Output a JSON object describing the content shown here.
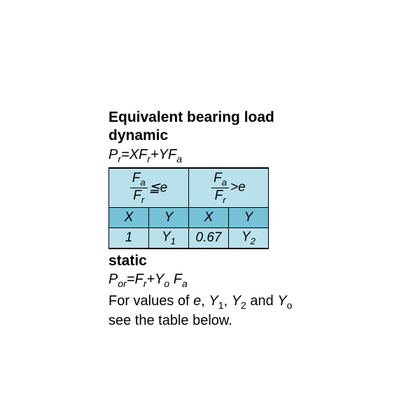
{
  "title_line1": "Equivalent bearing load",
  "title_line2": "dynamic",
  "formula_dynamic_html": "P<span class='sub'>r</span>=XF<span class='sub'>r</span>+YF<span class='sub'>a</span>",
  "table": {
    "bg_header": "#b9e1ec",
    "bg_row1": "#75c1d6",
    "bg_row2": "#b9e1ec",
    "border_color": "#000000",
    "header_left_html": "<span class='frac'><span class='num'>F<span class=\"sub\">a</span></span><span class='den'>F<span class=\"sub\">r</span></span></span><span class='rel'>≦e</span>",
    "header_right_html": "<span class='frac'><span class='num'>F<span class=\"sub\">a</span></span><span class='den'>F<span class=\"sub\">r</span></span></span><span class='rel'>&gt;e</span>",
    "row_xy": [
      "X",
      "Y",
      "X",
      "Y"
    ],
    "row_vals_html": [
      "1",
      "Y<span class='sub'>1</span>",
      "0.67",
      "Y<span class='sub'>2</span>"
    ]
  },
  "title_static": "static",
  "formula_static_html": "P<span class='sub'>or</span>=F<span class='sub'>r</span>+Y<span class='sub'>o</span> F<span class='sub'>a</span>",
  "note_html": "For values of <i>e</i>, <i>Y</i><span class='sub'>1</span>, <i>Y</i><span class='sub'>2</span> and <i>Y</i><span class='sub'>o</span><br>see the table below."
}
